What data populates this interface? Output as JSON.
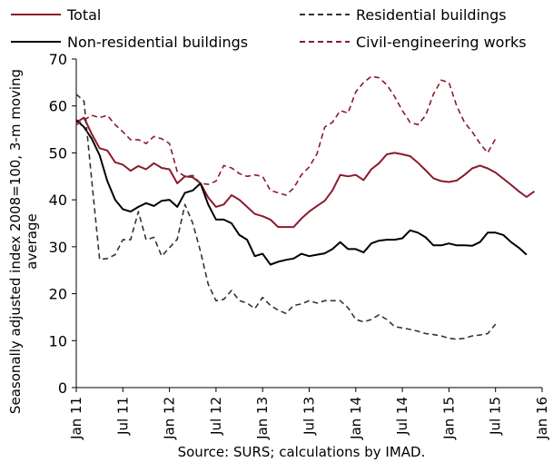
{
  "chart_data": {
    "type": "line",
    "ylabel": "Seasonally adjusted index 2008=100, 3-m moving average",
    "ylabel_lines": [
      "Seasonally adjusted index 2008=100, 3-m moving",
      "average"
    ],
    "source": "Source: SURS; calculations by IMAD.",
    "ylim": [
      0,
      70
    ],
    "yticks": [
      0,
      10,
      20,
      30,
      40,
      50,
      60,
      70
    ],
    "x_start": "Jan 11",
    "x_labels": [
      "Jan 11",
      "Jul 11",
      "Jan 12",
      "Jul 12",
      "Jan 13",
      "Jul 13",
      "Jan 14",
      "Jul 14",
      "Jan 15",
      "Jul 15",
      "Jan 16"
    ],
    "grid": false,
    "legend_position": "top",
    "series": [
      {
        "name": "Total",
        "color": "#8B1A2B",
        "style": "solid",
        "values": [
          56.5,
          57.5,
          54,
          51,
          50.5,
          48,
          47.5,
          46.2,
          47.2,
          46.5,
          47.8,
          46.8,
          46.5,
          43.5,
          45,
          44.8,
          43.5,
          40.5,
          38.5,
          39,
          41,
          40,
          38.5,
          37,
          36.5,
          35.8,
          34.2,
          34.2,
          34.2,
          36,
          37.5,
          38.7,
          39.8,
          42,
          45.3,
          45,
          45.3,
          44.2,
          46.5,
          47.8,
          49.7,
          50,
          49.7,
          49.3,
          47.9,
          46.3,
          44.6,
          44,
          43.8,
          44.1,
          45.3,
          46.7,
          47.3,
          46.7,
          45.8,
          44.5,
          43.2,
          41.8,
          40.6,
          41.8
        ]
      },
      {
        "name": "Non-residential buildings",
        "color": "#000000",
        "style": "solid",
        "values": [
          57,
          55.5,
          53,
          49.5,
          44,
          40,
          38,
          37.5,
          38.5,
          39.3,
          38.7,
          39.8,
          40,
          38.5,
          41.5,
          42,
          43.5,
          39,
          35.8,
          35.8,
          35,
          32.5,
          31.5,
          28,
          28.5,
          26.2,
          26.8,
          27.2,
          27.5,
          28.5,
          28,
          28.3,
          28.6,
          29.5,
          31,
          29.5,
          29.5,
          28.8,
          30.7,
          31.3,
          31.5,
          31.5,
          31.8,
          33.5,
          33,
          32,
          30.3,
          30.3,
          30.7,
          30.3,
          30.3,
          30.2,
          31,
          33,
          33,
          32.5,
          31,
          29.8,
          28.3
        ]
      },
      {
        "name": "Residential buildings",
        "color": "#333333",
        "style": "dashed",
        "values": [
          62.5,
          61,
          44,
          27.3,
          27.5,
          28.3,
          31.5,
          31.5,
          37.5,
          31.5,
          32,
          28,
          29.8,
          31.6,
          39,
          35,
          29,
          22,
          18.5,
          18.8,
          20.7,
          18.5,
          18,
          16.8,
          19.2,
          17.5,
          16.5,
          15.8,
          17.5,
          17.8,
          18.5,
          18,
          18.5,
          18.5,
          18.5,
          17,
          14.5,
          14,
          14.5,
          15.5,
          14.5,
          13,
          12.7,
          12.4,
          12,
          11.5,
          11.3,
          11,
          10.5,
          10.3,
          10.5,
          11,
          11.2,
          11.5,
          13.5
        ]
      },
      {
        "name": "Civil-engineering works",
        "color": "#8B1A2B",
        "style": "dashed",
        "values": [
          56,
          57,
          58,
          57.5,
          58,
          56,
          54.5,
          52.8,
          52.8,
          52,
          53.5,
          53,
          52,
          46,
          45,
          45.2,
          43.5,
          43.3,
          44,
          47.3,
          46.8,
          45.6,
          45,
          45.3,
          45,
          42,
          41.5,
          41,
          42.5,
          45.3,
          47,
          49.8,
          55.5,
          56.5,
          59,
          58.5,
          63,
          65,
          66.3,
          66,
          64.5,
          62,
          59,
          56.5,
          56,
          58,
          62.5,
          65.5,
          65,
          60,
          56.5,
          54.5,
          52,
          50,
          53
        ]
      }
    ]
  }
}
